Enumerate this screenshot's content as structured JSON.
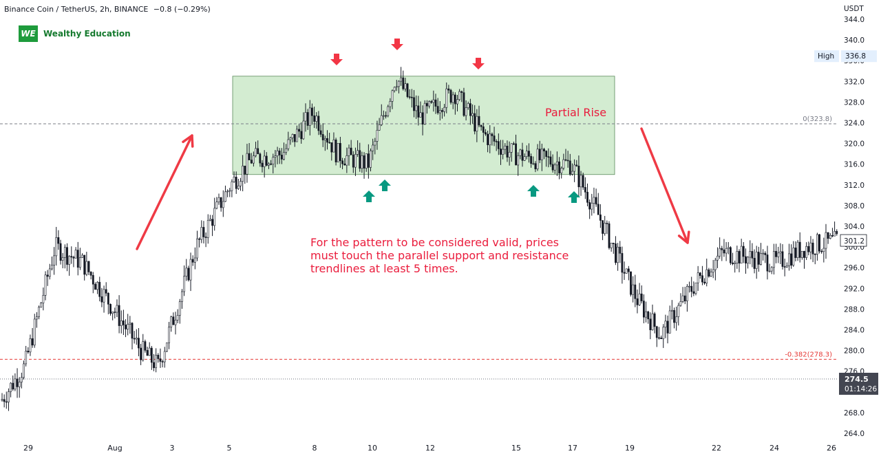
{
  "header": {
    "symbol": "Binance Coin / TetherUS, 2h, BINANCE",
    "change": "−0.8 (−0.29%)"
  },
  "brand": {
    "mark": "WE",
    "name": "Wealthy Education"
  },
  "annotations": {
    "note": "For the pattern to be considered valid, prices must touch the parallel support and resistance trendlines at least 5 times.",
    "partial_rise": "Partial Rise"
  },
  "price_axis": {
    "currency": "USDT",
    "ticks": [
      "264.0",
      "268.0",
      "272.0",
      "276.0",
      "280.0",
      "284.0",
      "288.0",
      "292.0",
      "296.0",
      "300.0",
      "304.0",
      "308.0",
      "312.0",
      "316.0",
      "320.0",
      "324.0",
      "328.0",
      "332.0",
      "336.0",
      "340.0",
      "344.0"
    ],
    "high_label": "High",
    "high_value": "336.8",
    "current_price": "301.2",
    "last_price": "274.5",
    "countdown": "01:14:26"
  },
  "fib_levels": [
    {
      "label": "0(323.8)",
      "price": 323.8,
      "color": "#787b86"
    },
    {
      "label": "-0.382(278.3)",
      "price": 278.3,
      "color": "#e53935"
    }
  ],
  "time_axis": [
    "29",
    "Aug",
    "3",
    "5",
    "8",
    "10",
    "12",
    "15",
    "17",
    "19",
    "22",
    "24",
    "26"
  ],
  "colors": {
    "candle": "#131722",
    "zone_fill": "#d3ecd1",
    "zone_border": "#5a8a5a",
    "arrow_red": "#f23645",
    "arrow_green": "#089981",
    "trend_arrow": "#ef3a45",
    "high_badge": "#e3effd"
  },
  "chart_data": {
    "type": "candlestick",
    "title": "Binance Coin / TetherUS, 2h, BINANCE",
    "ylim": [
      263,
      345
    ],
    "x_ticks": [
      "29",
      "Aug",
      "3",
      "5",
      "8",
      "10",
      "12",
      "15",
      "17",
      "19",
      "22",
      "24",
      "26"
    ],
    "rectangle_zone": {
      "top": 333.0,
      "bottom": 314.0,
      "from": "5",
      "to": "18"
    },
    "resistance_touches": 3,
    "support_touches": 4,
    "series_close_path": [
      {
        "x": "28",
        "y": 270
      },
      {
        "x": "29",
        "y": 277
      },
      {
        "x": "30",
        "y": 300
      },
      {
        "x": "31",
        "y": 297
      },
      {
        "x": "Aug",
        "y": 288
      },
      {
        "x": "2",
        "y": 280
      },
      {
        "x": "3",
        "y": 277
      },
      {
        "x": "4",
        "y": 300
      },
      {
        "x": "5",
        "y": 312
      },
      {
        "x": "6",
        "y": 317
      },
      {
        "x": "7",
        "y": 318
      },
      {
        "x": "8",
        "y": 326
      },
      {
        "x": "9",
        "y": 318
      },
      {
        "x": "10",
        "y": 316
      },
      {
        "x": "11",
        "y": 333
      },
      {
        "x": "12",
        "y": 325
      },
      {
        "x": "13",
        "y": 330
      },
      {
        "x": "14",
        "y": 322
      },
      {
        "x": "15",
        "y": 318
      },
      {
        "x": "16",
        "y": 317
      },
      {
        "x": "17",
        "y": 316
      },
      {
        "x": "18",
        "y": 306
      },
      {
        "x": "19",
        "y": 290
      },
      {
        "x": "20",
        "y": 283
      },
      {
        "x": "21",
        "y": 293
      },
      {
        "x": "22",
        "y": 299
      },
      {
        "x": "23",
        "y": 298
      },
      {
        "x": "24",
        "y": 297
      },
      {
        "x": "25",
        "y": 300
      },
      {
        "x": "26",
        "y": 301.2
      }
    ]
  }
}
